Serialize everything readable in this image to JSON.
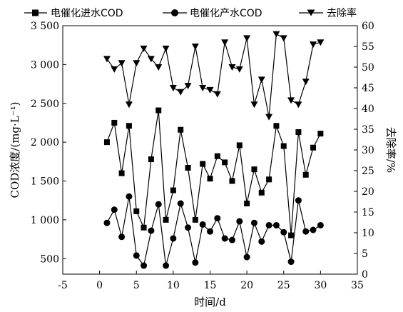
{
  "chart_data": {
    "type": "line",
    "legend": {
      "placement": "top",
      "entries": [
        "电催化进水COD",
        "电催化产水COD",
        "去除率"
      ]
    },
    "xlabel": "时间/d",
    "ylabel_left": "COD浓度/(mg·L⁻¹)",
    "ylabel_right": "去除率/%",
    "xlim": [
      -5,
      35
    ],
    "x_ticks": [
      -5,
      0,
      5,
      10,
      15,
      20,
      25,
      30,
      35
    ],
    "x_tick_labels": [
      "-5",
      "0",
      "5",
      "10",
      "15",
      "20",
      "25",
      "30",
      "35"
    ],
    "ylim_left": [
      300,
      3500
    ],
    "y_left_ticks": [
      500,
      1000,
      1500,
      2000,
      2500,
      3000,
      3500
    ],
    "y_left_tick_labels": [
      "500",
      "1 000",
      "1 500",
      "2 000",
      "2 500",
      "3 000",
      "3 500"
    ],
    "ylim_right": [
      0,
      60
    ],
    "y_right_ticks": [
      0,
      5,
      10,
      15,
      20,
      25,
      30,
      35,
      40,
      45,
      50,
      55,
      60
    ],
    "y_right_tick_labels": [
      "0",
      "5",
      "10",
      "15",
      "20",
      "25",
      "30",
      "35",
      "40",
      "45",
      "50",
      "55",
      "60"
    ],
    "grid": false,
    "x": [
      1,
      2,
      3,
      4,
      5,
      6,
      7,
      8,
      9,
      10,
      11,
      12,
      13,
      14,
      15,
      16,
      17,
      18,
      19,
      20,
      21,
      22,
      23,
      24,
      25,
      26,
      27,
      28,
      29,
      30
    ],
    "series": [
      {
        "name": "电催化进水COD",
        "axis": "left",
        "marker": "square",
        "values": [
          2000,
          2250,
          1600,
          2210,
          1110,
          900,
          1780,
          2410,
          1000,
          1380,
          2160,
          1670,
          1000,
          1720,
          1530,
          1820,
          1740,
          1500,
          1960,
          1210,
          1650,
          1350,
          1520,
          2210,
          1950,
          800,
          2130,
          1580,
          1930,
          2110
        ]
      },
      {
        "name": "电催化产水COD",
        "axis": "left",
        "marker": "circle",
        "values": [
          960,
          1130,
          780,
          1300,
          540,
          410,
          860,
          1200,
          410,
          760,
          1210,
          900,
          450,
          940,
          850,
          1020,
          760,
          740,
          980,
          520,
          960,
          720,
          930,
          930,
          840,
          460,
          1250,
          850,
          870,
          930
        ]
      },
      {
        "name": "去除率",
        "axis": "right",
        "marker": "triangle-down",
        "values": [
          52,
          49.5,
          51,
          41,
          51,
          54.5,
          52,
          50,
          54.5,
          45,
          44,
          45.5,
          55,
          45,
          44.5,
          43.5,
          56,
          50,
          49.5,
          57,
          41,
          47,
          38,
          58,
          57,
          42,
          41,
          46.5,
          55.5,
          56
        ]
      }
    ]
  }
}
